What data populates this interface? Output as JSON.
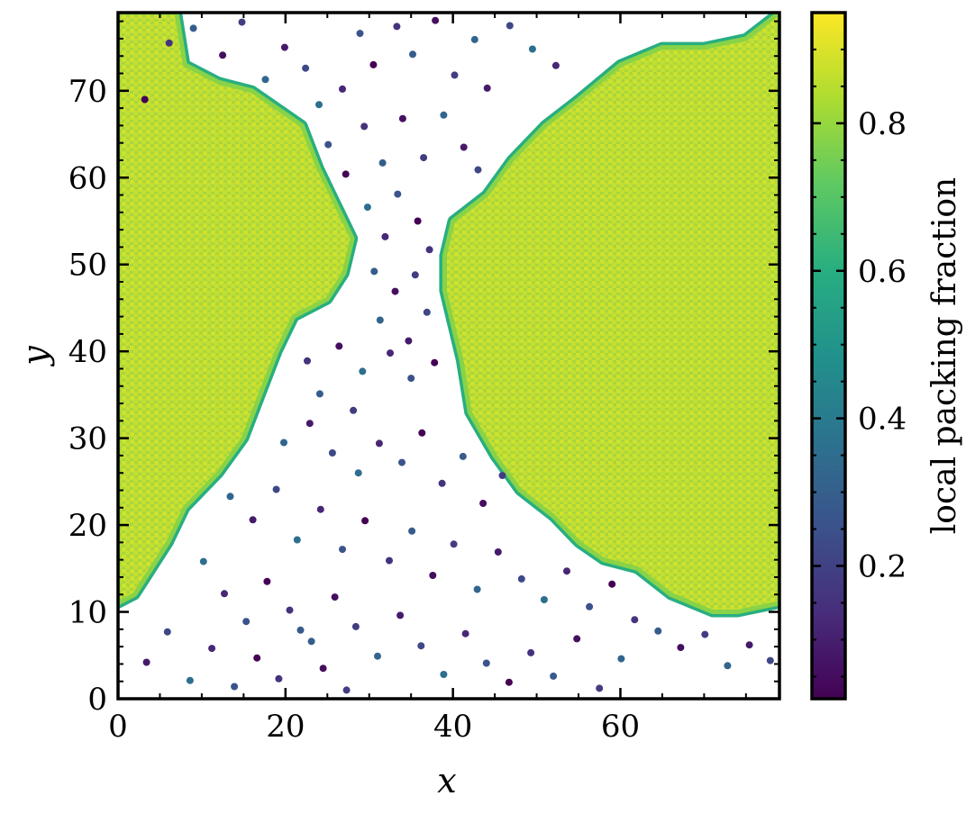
{
  "chart_data": {
    "type": "scatter",
    "title": "",
    "xlabel": "x",
    "ylabel": "y",
    "xlim": [
      0,
      79
    ],
    "ylim": [
      0,
      79
    ],
    "x_ticks": [
      "0",
      "20",
      "40",
      "60"
    ],
    "y_ticks": [
      "0",
      "10",
      "20",
      "30",
      "40",
      "50",
      "60",
      "70"
    ],
    "grid": false,
    "colormap": "viridis",
    "colorbar": {
      "label": "local packing fraction",
      "range": [
        0.02,
        0.95
      ],
      "ticks": [
        "0.2",
        "0.4",
        "0.6",
        "0.8"
      ]
    },
    "clusters": [
      {
        "phase": "dense",
        "packing_fraction": 0.88,
        "boundary": [
          [
            0,
            79
          ],
          [
            7,
            79
          ],
          [
            8,
            73
          ],
          [
            12,
            71
          ],
          [
            16,
            70
          ],
          [
            19,
            68
          ],
          [
            22,
            66
          ],
          [
            24,
            61
          ],
          [
            26,
            57
          ],
          [
            28,
            53
          ],
          [
            27,
            49
          ],
          [
            25,
            46
          ],
          [
            21,
            44
          ],
          [
            19,
            40
          ],
          [
            17,
            35
          ],
          [
            15,
            30
          ],
          [
            12,
            26
          ],
          [
            8,
            22
          ],
          [
            6,
            18
          ],
          [
            4,
            15
          ],
          [
            2,
            12
          ],
          [
            0,
            11
          ]
        ]
      },
      {
        "phase": "dense",
        "packing_fraction": 0.88,
        "boundary": [
          [
            79,
            79
          ],
          [
            79,
            11
          ],
          [
            74,
            10
          ],
          [
            71,
            10
          ],
          [
            66,
            12
          ],
          [
            62,
            15
          ],
          [
            58,
            16
          ],
          [
            55,
            18
          ],
          [
            52,
            21
          ],
          [
            48,
            24
          ],
          [
            45,
            28
          ],
          [
            42,
            33
          ],
          [
            41,
            39
          ],
          [
            40,
            43
          ],
          [
            39,
            47
          ],
          [
            39,
            51
          ],
          [
            40,
            55
          ],
          [
            44,
            58
          ],
          [
            47,
            62
          ],
          [
            51,
            66
          ],
          [
            55,
            69
          ],
          [
            60,
            73
          ],
          [
            65,
            75
          ],
          [
            70,
            75
          ],
          [
            75,
            76
          ]
        ]
      }
    ],
    "dilute_phase": {
      "packing_fraction_range": [
        0.02,
        0.5
      ],
      "sample_points": [
        [
          3.2,
          69.0
        ],
        [
          6.1,
          75.5
        ],
        [
          9.0,
          77.2
        ],
        [
          12.5,
          74.1
        ],
        [
          14.8,
          77.9
        ],
        [
          17.6,
          71.3
        ],
        [
          19.9,
          75.0
        ],
        [
          22.4,
          72.6
        ],
        [
          24.0,
          68.4
        ],
        [
          26.8,
          70.2
        ],
        [
          28.9,
          76.6
        ],
        [
          30.5,
          73.0
        ],
        [
          33.3,
          77.4
        ],
        [
          35.2,
          74.2
        ],
        [
          37.9,
          78.1
        ],
        [
          40.2,
          71.8
        ],
        [
          42.6,
          75.9
        ],
        [
          44.1,
          70.3
        ],
        [
          46.8,
          77.5
        ],
        [
          49.5,
          74.8
        ],
        [
          52.3,
          72.9
        ],
        [
          25.1,
          63.8
        ],
        [
          27.2,
          60.4
        ],
        [
          29.4,
          65.9
        ],
        [
          31.6,
          61.7
        ],
        [
          34.0,
          66.8
        ],
        [
          36.5,
          62.3
        ],
        [
          38.9,
          67.2
        ],
        [
          41.3,
          63.5
        ],
        [
          43.0,
          60.9
        ],
        [
          29.8,
          56.6
        ],
        [
          31.9,
          53.2
        ],
        [
          33.4,
          58.1
        ],
        [
          35.8,
          55.0
        ],
        [
          37.2,
          51.7
        ],
        [
          30.6,
          49.2
        ],
        [
          33.1,
          46.9
        ],
        [
          35.5,
          48.8
        ],
        [
          31.3,
          43.6
        ],
        [
          34.7,
          41.2
        ],
        [
          36.9,
          44.5
        ],
        [
          29.2,
          37.7
        ],
        [
          32.5,
          39.8
        ],
        [
          35.0,
          36.9
        ],
        [
          37.8,
          38.7
        ],
        [
          22.6,
          38.9
        ],
        [
          24.1,
          35.1
        ],
        [
          26.4,
          40.6
        ],
        [
          28.1,
          33.2
        ],
        [
          19.8,
          29.5
        ],
        [
          22.9,
          31.7
        ],
        [
          25.6,
          28.3
        ],
        [
          28.7,
          26.0
        ],
        [
          31.2,
          29.4
        ],
        [
          33.9,
          27.2
        ],
        [
          36.3,
          30.6
        ],
        [
          38.7,
          24.8
        ],
        [
          41.2,
          27.9
        ],
        [
          43.6,
          22.5
        ],
        [
          45.9,
          25.7
        ],
        [
          13.4,
          23.3
        ],
        [
          16.1,
          20.6
        ],
        [
          18.9,
          24.1
        ],
        [
          21.4,
          18.3
        ],
        [
          24.2,
          21.8
        ],
        [
          26.8,
          17.2
        ],
        [
          29.5,
          20.5
        ],
        [
          32.4,
          15.9
        ],
        [
          35.1,
          19.3
        ],
        [
          37.6,
          14.2
        ],
        [
          40.1,
          17.8
        ],
        [
          42.9,
          12.6
        ],
        [
          45.4,
          16.9
        ],
        [
          48.2,
          13.8
        ],
        [
          50.9,
          11.4
        ],
        [
          53.6,
          14.7
        ],
        [
          56.3,
          10.6
        ],
        [
          59.0,
          13.2
        ],
        [
          61.7,
          9.1
        ],
        [
          64.5,
          7.8
        ],
        [
          67.2,
          5.9
        ],
        [
          70.1,
          7.4
        ],
        [
          72.8,
          3.8
        ],
        [
          75.4,
          6.2
        ],
        [
          77.9,
          4.4
        ],
        [
          10.2,
          15.8
        ],
        [
          12.7,
          12.1
        ],
        [
          15.3,
          8.9
        ],
        [
          17.8,
          13.5
        ],
        [
          20.5,
          10.2
        ],
        [
          23.1,
          6.6
        ],
        [
          25.9,
          11.7
        ],
        [
          28.4,
          8.3
        ],
        [
          31.0,
          4.9
        ],
        [
          33.7,
          9.6
        ],
        [
          36.2,
          6.1
        ],
        [
          38.9,
          2.8
        ],
        [
          41.5,
          7.5
        ],
        [
          44.0,
          4.1
        ],
        [
          46.7,
          1.9
        ],
        [
          49.3,
          5.3
        ],
        [
          52.0,
          2.6
        ],
        [
          54.8,
          6.9
        ],
        [
          57.5,
          1.2
        ],
        [
          60.1,
          4.6
        ],
        [
          3.4,
          4.2
        ],
        [
          5.9,
          7.7
        ],
        [
          8.6,
          2.1
        ],
        [
          11.2,
          5.8
        ],
        [
          13.9,
          1.4
        ],
        [
          16.6,
          4.7
        ],
        [
          19.2,
          2.3
        ],
        [
          21.8,
          7.9
        ],
        [
          24.5,
          3.5
        ],
        [
          27.3,
          1.0
        ]
      ]
    }
  }
}
